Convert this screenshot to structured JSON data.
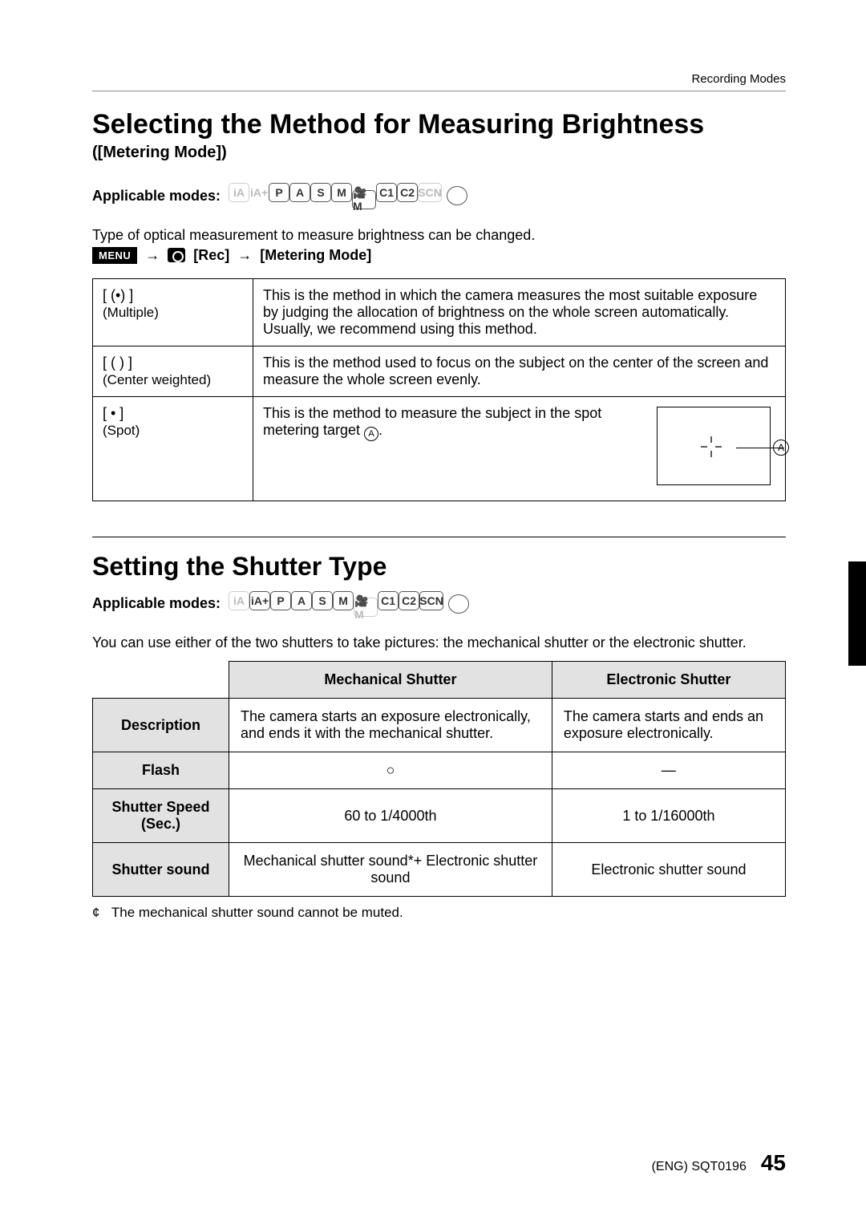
{
  "header": {
    "section": "Recording Modes"
  },
  "title1": "Selecting the Method for Measuring Brightness",
  "subtitle1": "([Metering Mode])",
  "applicable_label": "Applicable modes:",
  "modes_set1": [
    {
      "label": "iA",
      "dimmed": true,
      "name": "mode-ia"
    },
    {
      "label": "iA+",
      "dimmed": true,
      "name": "mode-iaplus",
      "noborder": true
    },
    {
      "label": "P",
      "dimmed": false,
      "name": "mode-p"
    },
    {
      "label": "A",
      "dimmed": false,
      "name": "mode-a"
    },
    {
      "label": "S",
      "dimmed": false,
      "name": "mode-s"
    },
    {
      "label": "M",
      "dimmed": false,
      "name": "mode-m"
    },
    {
      "label": "🎥M",
      "dimmed": false,
      "name": "mode-movie",
      "wide": true
    },
    {
      "label": "C1",
      "dimmed": false,
      "name": "mode-c1"
    },
    {
      "label": "C2",
      "dimmed": false,
      "name": "mode-c2"
    },
    {
      "label": "SCN",
      "dimmed": true,
      "name": "mode-scn",
      "wide": true
    }
  ],
  "body_line": "Type of optical measurement to measure brightness can be changed.",
  "menu_path": {
    "menu": "MENU",
    "rec": "[Rec]",
    "target": "[Metering Mode]"
  },
  "metering_rows": [
    {
      "symbol": "[ (•) ]",
      "label": "(Multiple)",
      "desc": "This is the method in which the camera measures the most suitable exposure by judging the allocation of brightness on the whole screen automatically. Usually, we recommend using this method."
    },
    {
      "symbol": "[ ( ) ]",
      "label": "(Center weighted)",
      "desc": "This is the method used to focus on the subject on the center of the screen and measure the whole screen evenly."
    },
    {
      "symbol": "[ • ]",
      "label": "(Spot)",
      "desc": "This is the method to measure the subject in the spot metering target "
    }
  ],
  "spot_marker": "A",
  "title2": "Setting the Shutter Type",
  "modes_set2": [
    {
      "label": "iA",
      "dimmed": true,
      "name": "mode-ia"
    },
    {
      "label": "iA+",
      "dimmed": false,
      "name": "mode-iaplus"
    },
    {
      "label": "P",
      "dimmed": false,
      "name": "mode-p"
    },
    {
      "label": "A",
      "dimmed": false,
      "name": "mode-a"
    },
    {
      "label": "S",
      "dimmed": false,
      "name": "mode-s"
    },
    {
      "label": "M",
      "dimmed": false,
      "name": "mode-m"
    },
    {
      "label": "🎥M",
      "dimmed": true,
      "name": "mode-movie",
      "wide": true
    },
    {
      "label": "C1",
      "dimmed": false,
      "name": "mode-c1"
    },
    {
      "label": "C2",
      "dimmed": false,
      "name": "mode-c2"
    },
    {
      "label": "SCN",
      "dimmed": false,
      "name": "mode-scn",
      "wide": true
    }
  ],
  "shutter_intro": "You can use either of the two shutters to take pictures: the mechanical shutter or the electronic shutter.",
  "shutter_table": {
    "col_headers": [
      "Mechanical Shutter",
      "Electronic Shutter"
    ],
    "rows": [
      {
        "head": "Description",
        "c1": "The camera starts an exposure electronically, and ends it with the mechanical shutter.",
        "c2": "The camera starts and ends an exposure electronically.",
        "align": "left"
      },
      {
        "head": "Flash",
        "c1": "○",
        "c2": "—",
        "align": "center"
      },
      {
        "head": "Shutter Speed (Sec.)",
        "c1": "60 to 1/4000th",
        "c2": "1 to 1/16000th",
        "align": "center"
      },
      {
        "head": "Shutter sound",
        "c1": "Mechanical shutter sound*+ Electronic shutter sound",
        "c2": "Electronic shutter sound",
        "align": "center"
      }
    ]
  },
  "footnote": "The mechanical shutter sound cannot be muted.",
  "footnote_marker": "¢",
  "footer": {
    "code": "(ENG) SQT0196",
    "page": "45"
  },
  "colors": {
    "text": "#000000",
    "bg": "#ffffff",
    "header_bg": "#e2e2e2",
    "dimmed": "#bbbbbb",
    "border": "#000000"
  }
}
